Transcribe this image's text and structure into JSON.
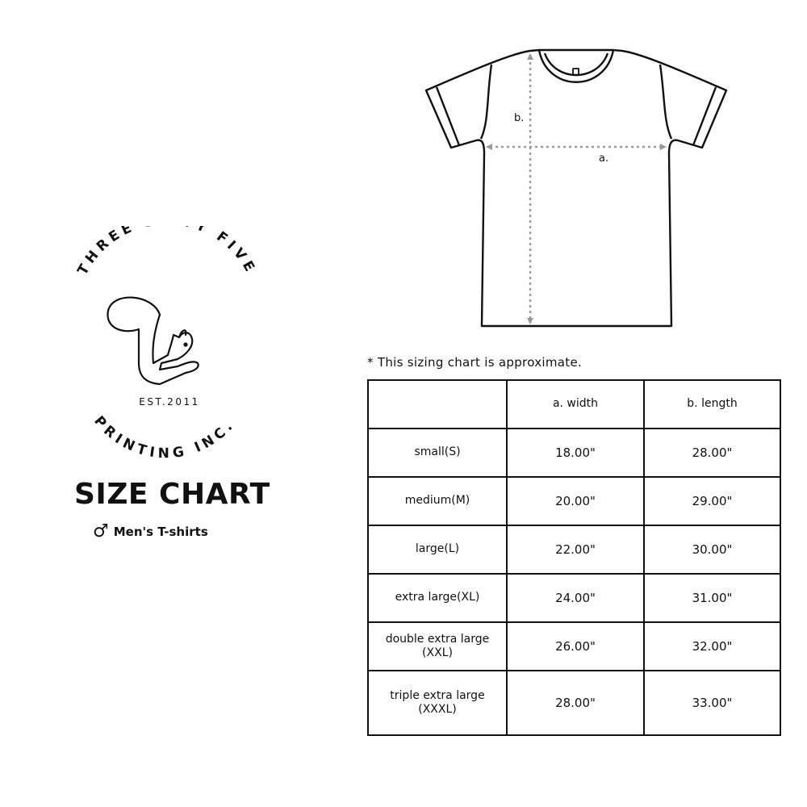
{
  "logo": {
    "top_text": "THREE SIXTY FIVE",
    "bottom_text": "PRINTING INC.",
    "established": "EST.2011"
  },
  "header": {
    "title": "SIZE CHART",
    "gender_icon": "male-symbol-icon",
    "subtitle": "Men's T-shirts"
  },
  "diagram": {
    "label_a": "a.",
    "label_b": "b."
  },
  "note": "* This sizing chart is approximate.",
  "table": {
    "columns": [
      "",
      "a. width",
      "b. length"
    ],
    "rows": [
      {
        "size": "small(S)",
        "width": "18.00\"",
        "length": "28.00\""
      },
      {
        "size": "medium(M)",
        "width": "20.00\"",
        "length": "29.00\""
      },
      {
        "size": "large(L)",
        "width": "22.00\"",
        "length": "30.00\""
      },
      {
        "size": "extra large(XL)",
        "width": "24.00\"",
        "length": "31.00\""
      },
      {
        "size": "double extra large (XXL)",
        "width": "26.00\"",
        "length": "32.00\""
      },
      {
        "size": "triple extra large (XXXL)",
        "width": "28.00\"",
        "length": "33.00\""
      }
    ]
  }
}
